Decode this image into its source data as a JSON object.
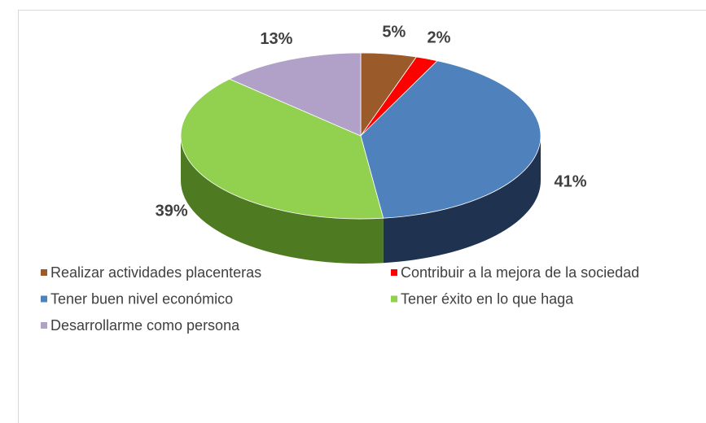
{
  "chart_data": {
    "type": "pie",
    "categories": [
      "Realizar actividades placenteras",
      "Contribuir a la mejora de la sociedad",
      "Tener buen nivel económico",
      "Tener éxito en lo que haga",
      "Desarrollarme como persona"
    ],
    "values": [
      5,
      2,
      41,
      39,
      13
    ],
    "value_labels": [
      "5%",
      "2%",
      "41%",
      "39%",
      "13%"
    ],
    "colors": [
      "#9a5a2a",
      "#ff0000",
      "#4f81bd",
      "#92d050",
      "#b1a0c7"
    ],
    "side_colors": [
      "#6b3d1c",
      "#b00000",
      "#1f3350",
      "#4e7a22",
      "#7d6e90"
    ],
    "legend": "bottom"
  }
}
